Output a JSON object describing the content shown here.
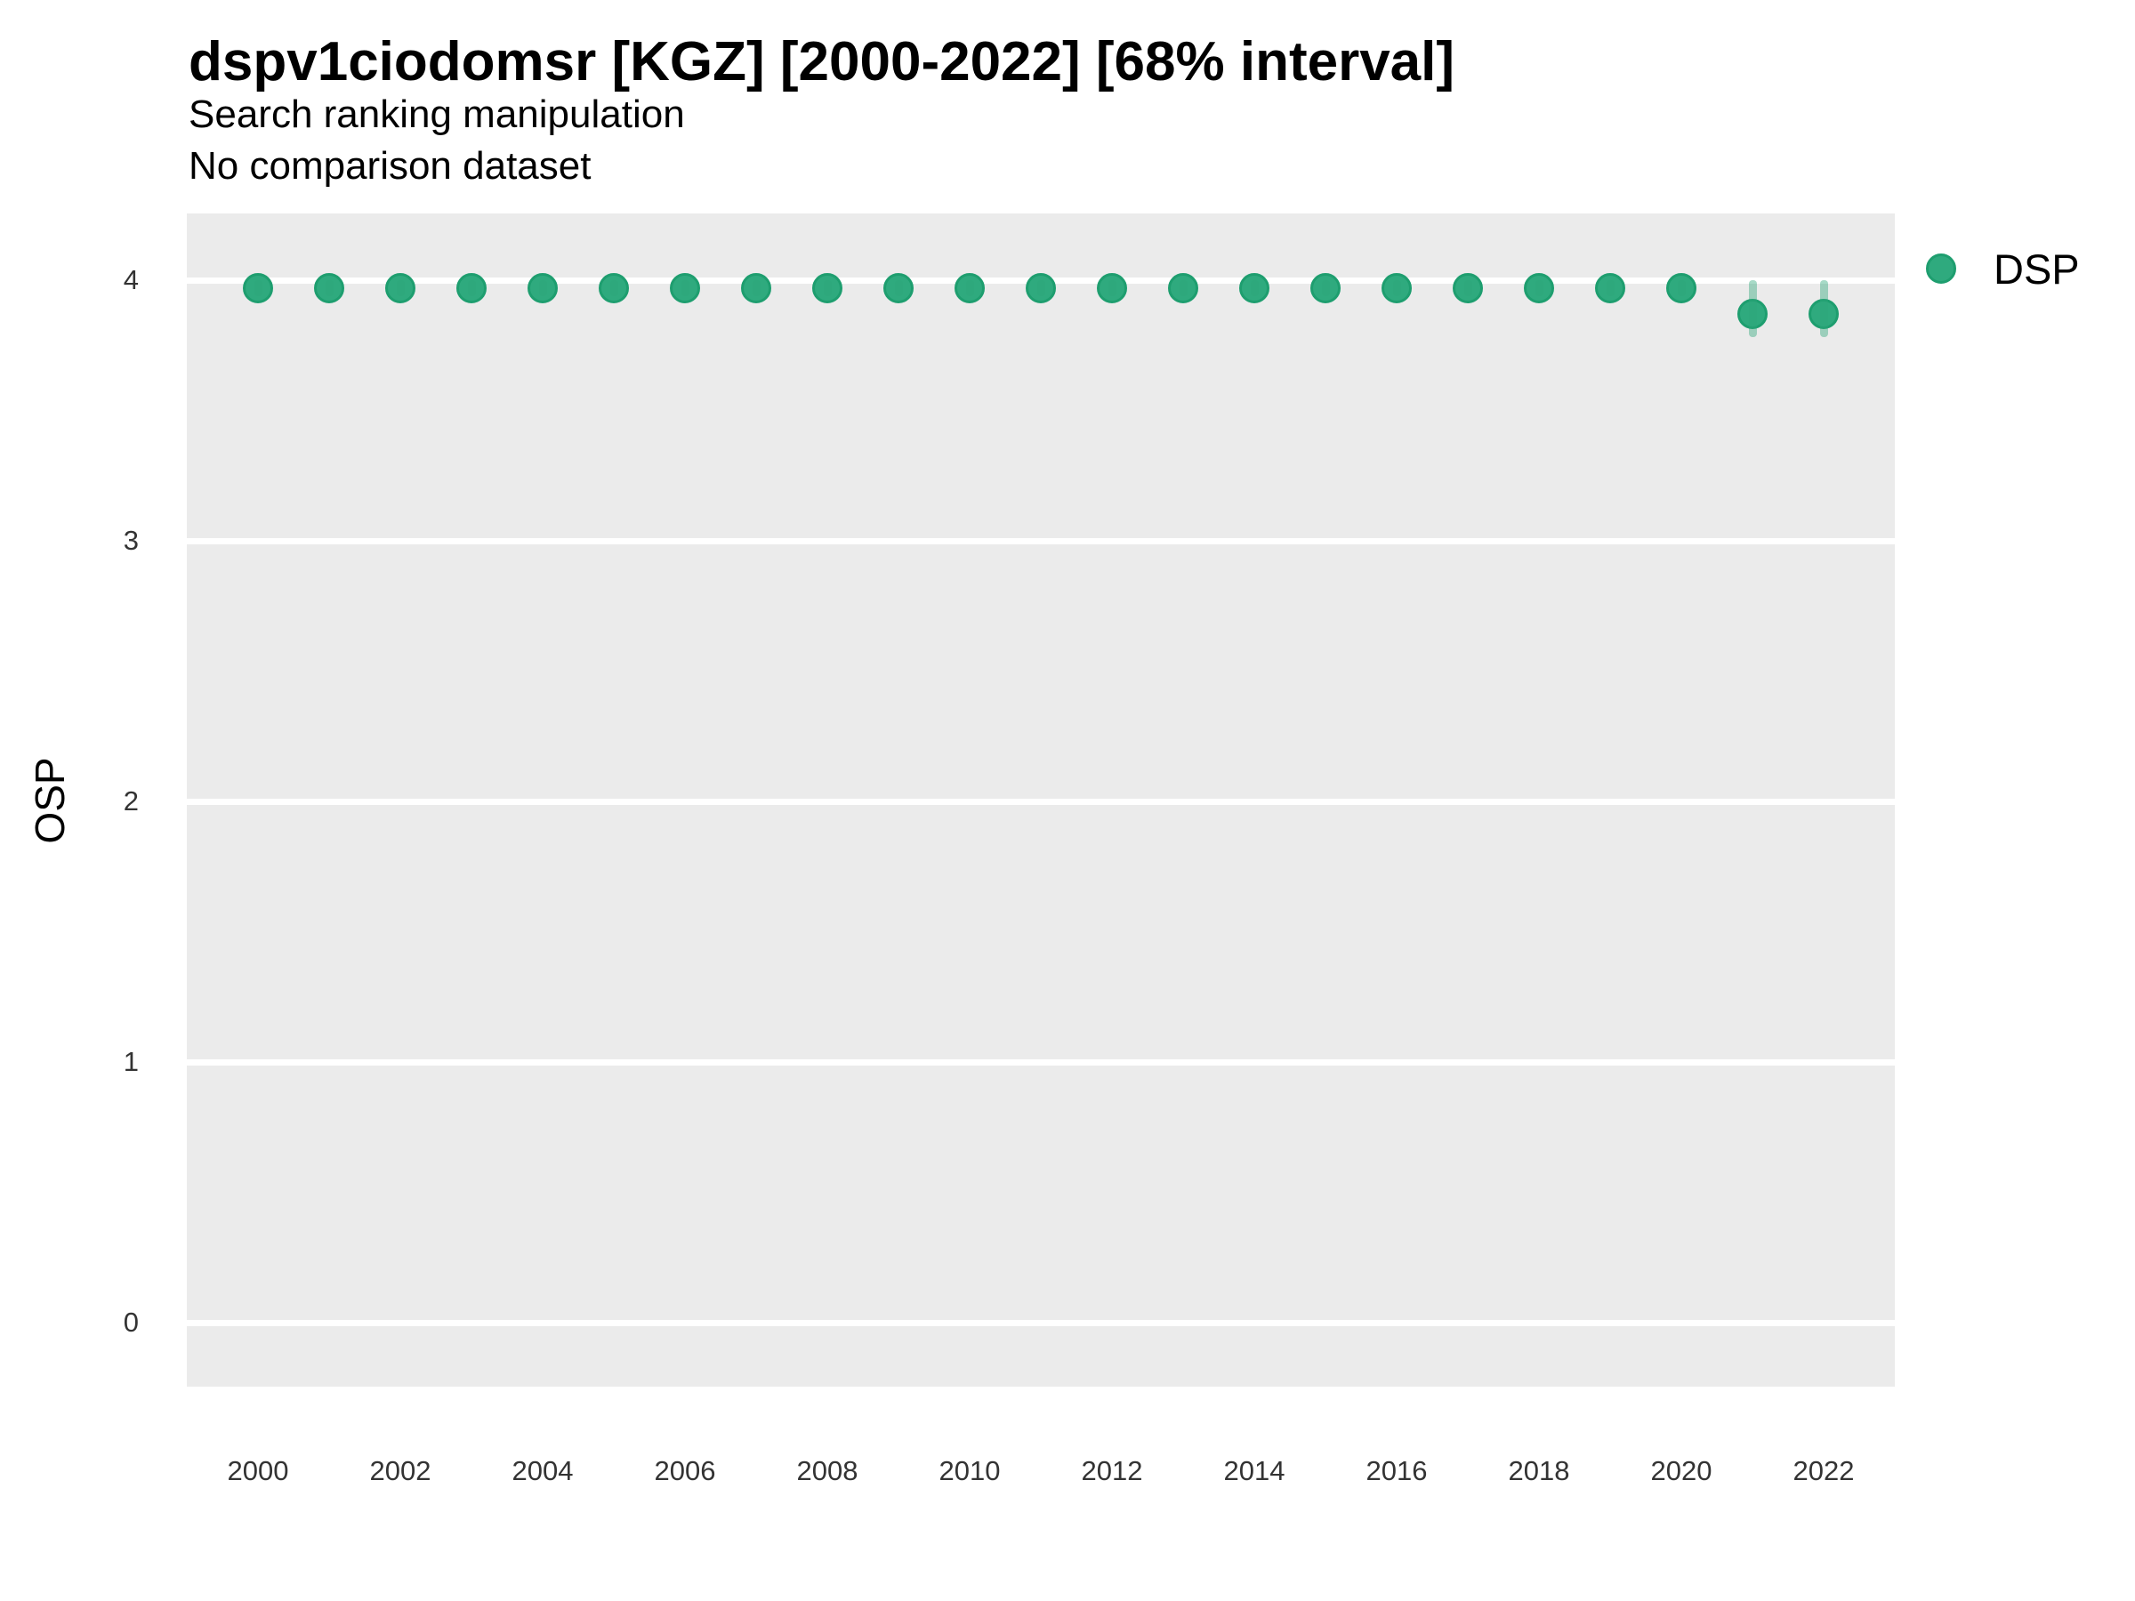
{
  "header": {
    "title": "dspv1ciodomsr [KGZ] [2000-2022] [68% interval]",
    "subtitle": "Search ranking manipulation",
    "note": "No comparison dataset"
  },
  "axes": {
    "y_title": "OSP",
    "y_ticks": [
      4,
      3,
      2,
      1,
      0
    ],
    "x_ticks": [
      2000,
      2002,
      2004,
      2006,
      2008,
      2010,
      2012,
      2014,
      2016,
      2018,
      2020,
      2022
    ]
  },
  "legend": {
    "label": "DSP"
  },
  "colors": {
    "point_fill": "#2FAA7E",
    "point_stroke": "#1E9E6F",
    "interval_bar": "rgba(46, 167, 122, 0.42)",
    "panel_bg": "#EBEBEB",
    "gridline": "#FFFFFF",
    "tick_text": "#333333",
    "title_text": "#000000"
  },
  "chart_data": {
    "type": "scatter",
    "title": "dspv1ciodomsr [KGZ] [2000-2022] [68% interval]",
    "subtitle": "Search ranking manipulation",
    "note": "No comparison dataset",
    "xlabel": "",
    "ylabel": "OSP",
    "xlim": [
      1999,
      2023
    ],
    "ylim": [
      -0.25,
      4.25
    ],
    "interval_level": "68%",
    "grid": "horizontal-major-only",
    "legend_position": "right-top",
    "series": [
      {
        "name": "DSP",
        "x": [
          2000,
          2001,
          2002,
          2003,
          2004,
          2005,
          2006,
          2007,
          2008,
          2009,
          2010,
          2011,
          2012,
          2013,
          2014,
          2015,
          2016,
          2017,
          2018,
          2019,
          2020,
          2021,
          2022
        ],
        "y": [
          3.97,
          3.97,
          3.97,
          3.97,
          3.97,
          3.97,
          3.97,
          3.97,
          3.97,
          3.97,
          3.97,
          3.97,
          3.97,
          3.97,
          3.97,
          3.97,
          3.97,
          3.97,
          3.97,
          3.97,
          3.97,
          3.87,
          3.87
        ],
        "y_lo": [
          3.94,
          3.94,
          3.94,
          3.94,
          3.94,
          3.94,
          3.94,
          3.94,
          3.94,
          3.94,
          3.94,
          3.94,
          3.94,
          3.94,
          3.94,
          3.94,
          3.94,
          3.94,
          3.94,
          3.94,
          3.94,
          3.78,
          3.78
        ],
        "y_hi": [
          4.0,
          4.0,
          4.0,
          4.0,
          4.0,
          4.0,
          4.0,
          4.0,
          4.0,
          4.0,
          4.0,
          4.0,
          4.0,
          4.0,
          4.0,
          4.0,
          4.0,
          4.0,
          4.0,
          4.0,
          4.0,
          4.0,
          4.0
        ]
      }
    ]
  }
}
